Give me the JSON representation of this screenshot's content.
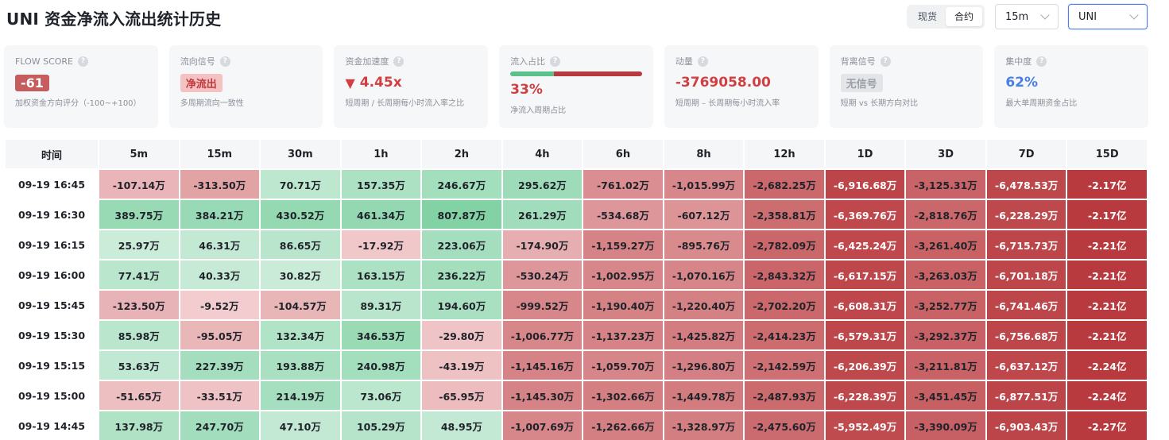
{
  "header": {
    "title": "UNI 资金净流入流出统计历史",
    "market_tabs": [
      {
        "label": "现货",
        "active": false
      },
      {
        "label": "合约",
        "active": true
      }
    ],
    "interval": "15m",
    "coin": "UNI"
  },
  "cards": [
    {
      "label": "FLOW SCORE",
      "value": "-61",
      "style": "score",
      "desc": "加权资金方向评分（-100~+100）"
    },
    {
      "label": "流向信号",
      "value": "净流出",
      "style": "signal",
      "desc": "多周期流向一致性"
    },
    {
      "label": "资金加速度",
      "value": "4.45x",
      "arrow": "▼",
      "style": "red",
      "desc": "短周期 / 长周期每小时流入率之比"
    },
    {
      "label": "流入占比",
      "value": "33%",
      "ratio": 0.33,
      "style": "ratio",
      "desc": "净流入周期占比"
    },
    {
      "label": "动量",
      "value": "-3769058.00",
      "style": "red",
      "desc": "短周期 – 长周期每小时流入率"
    },
    {
      "label": "背离信号",
      "value": "无信号",
      "style": "none",
      "desc": "短期 vs 长期方向对比"
    },
    {
      "label": "集中度",
      "value": "62%",
      "style": "blue",
      "desc": "最大单周期资金占比"
    }
  ],
  "colors": {
    "green_strong": "#7fd1a3",
    "green_light": "#dff3e8",
    "red_light": "#f4d0d2",
    "red_strong": "#b83a3e"
  },
  "table": {
    "columns": [
      "时间",
      "5m",
      "15m",
      "30m",
      "1h",
      "2h",
      "4h",
      "6h",
      "8h",
      "12h",
      "1D",
      "3D",
      "7D",
      "15D"
    ],
    "rows": [
      {
        "time": "09-19 16:45",
        "cells": [
          {
            "t": "-107.14万",
            "v": -107.14
          },
          {
            "t": "-313.50万",
            "v": -313.5
          },
          {
            "t": "70.71万",
            "v": 70.71
          },
          {
            "t": "157.35万",
            "v": 157.35
          },
          {
            "t": "246.67万",
            "v": 246.67
          },
          {
            "t": "295.62万",
            "v": 295.62
          },
          {
            "t": "-761.02万",
            "v": -761.02
          },
          {
            "t": "-1,015.99万",
            "v": -1015.99
          },
          {
            "t": "-2,682.25万",
            "v": -2682.25
          },
          {
            "t": "-6,916.68万",
            "v": -6916.68
          },
          {
            "t": "-3,125.31万",
            "v": -3125.31
          },
          {
            "t": "-6,478.53万",
            "v": -6478.53
          },
          {
            "t": "-2.17亿",
            "v": -21700
          }
        ]
      },
      {
        "time": "09-19 16:30",
        "cells": [
          {
            "t": "389.75万",
            "v": 389.75
          },
          {
            "t": "384.21万",
            "v": 384.21
          },
          {
            "t": "430.52万",
            "v": 430.52
          },
          {
            "t": "461.34万",
            "v": 461.34
          },
          {
            "t": "807.87万",
            "v": 807.87
          },
          {
            "t": "261.29万",
            "v": 261.29
          },
          {
            "t": "-534.68万",
            "v": -534.68
          },
          {
            "t": "-607.12万",
            "v": -607.12
          },
          {
            "t": "-2,358.81万",
            "v": -2358.81
          },
          {
            "t": "-6,369.76万",
            "v": -6369.76
          },
          {
            "t": "-2,818.76万",
            "v": -2818.76
          },
          {
            "t": "-6,228.29万",
            "v": -6228.29
          },
          {
            "t": "-2.17亿",
            "v": -21700
          }
        ]
      },
      {
        "time": "09-19 16:15",
        "cells": [
          {
            "t": "25.97万",
            "v": 25.97
          },
          {
            "t": "46.31万",
            "v": 46.31
          },
          {
            "t": "86.65万",
            "v": 86.65
          },
          {
            "t": "-17.92万",
            "v": -17.92
          },
          {
            "t": "223.06万",
            "v": 223.06
          },
          {
            "t": "-174.90万",
            "v": -174.9
          },
          {
            "t": "-1,159.27万",
            "v": -1159.27
          },
          {
            "t": "-895.76万",
            "v": -895.76
          },
          {
            "t": "-2,782.09万",
            "v": -2782.09
          },
          {
            "t": "-6,425.24万",
            "v": -6425.24
          },
          {
            "t": "-3,261.40万",
            "v": -3261.4
          },
          {
            "t": "-6,715.73万",
            "v": -6715.73
          },
          {
            "t": "-2.21亿",
            "v": -22100
          }
        ]
      },
      {
        "time": "09-19 16:00",
        "cells": [
          {
            "t": "77.41万",
            "v": 77.41
          },
          {
            "t": "40.33万",
            "v": 40.33
          },
          {
            "t": "30.82万",
            "v": 30.82
          },
          {
            "t": "163.15万",
            "v": 163.15
          },
          {
            "t": "236.22万",
            "v": 236.22
          },
          {
            "t": "-530.24万",
            "v": -530.24
          },
          {
            "t": "-1,002.95万",
            "v": -1002.95
          },
          {
            "t": "-1,070.16万",
            "v": -1070.16
          },
          {
            "t": "-2,843.32万",
            "v": -2843.32
          },
          {
            "t": "-6,617.15万",
            "v": -6617.15
          },
          {
            "t": "-3,263.03万",
            "v": -3263.03
          },
          {
            "t": "-6,701.18万",
            "v": -6701.18
          },
          {
            "t": "-2.21亿",
            "v": -22100
          }
        ]
      },
      {
        "time": "09-19 15:45",
        "cells": [
          {
            "t": "-123.50万",
            "v": -123.5
          },
          {
            "t": "-9.52万",
            "v": -9.52
          },
          {
            "t": "-104.57万",
            "v": -104.57
          },
          {
            "t": "89.31万",
            "v": 89.31
          },
          {
            "t": "194.60万",
            "v": 194.6
          },
          {
            "t": "-999.52万",
            "v": -999.52
          },
          {
            "t": "-1,190.40万",
            "v": -1190.4
          },
          {
            "t": "-1,220.40万",
            "v": -1220.4
          },
          {
            "t": "-2,702.20万",
            "v": -2702.2
          },
          {
            "t": "-6,608.31万",
            "v": -6608.31
          },
          {
            "t": "-3,252.77万",
            "v": -3252.77
          },
          {
            "t": "-6,741.46万",
            "v": -6741.46
          },
          {
            "t": "-2.21亿",
            "v": -22100
          }
        ]
      },
      {
        "time": "09-19 15:30",
        "cells": [
          {
            "t": "85.98万",
            "v": 85.98
          },
          {
            "t": "-95.05万",
            "v": -95.05
          },
          {
            "t": "132.34万",
            "v": 132.34
          },
          {
            "t": "346.53万",
            "v": 346.53
          },
          {
            "t": "-29.80万",
            "v": -29.8
          },
          {
            "t": "-1,006.77万",
            "v": -1006.77
          },
          {
            "t": "-1,137.23万",
            "v": -1137.23
          },
          {
            "t": "-1,425.82万",
            "v": -1425.82
          },
          {
            "t": "-2,414.23万",
            "v": -2414.23
          },
          {
            "t": "-6,579.31万",
            "v": -6579.31
          },
          {
            "t": "-3,292.37万",
            "v": -3292.37
          },
          {
            "t": "-6,756.68万",
            "v": -6756.68
          },
          {
            "t": "-2.21亿",
            "v": -22100
          }
        ]
      },
      {
        "time": "09-19 15:15",
        "cells": [
          {
            "t": "53.63万",
            "v": 53.63
          },
          {
            "t": "227.39万",
            "v": 227.39
          },
          {
            "t": "193.88万",
            "v": 193.88
          },
          {
            "t": "240.98万",
            "v": 240.98
          },
          {
            "t": "-43.19万",
            "v": -43.19
          },
          {
            "t": "-1,145.16万",
            "v": -1145.16
          },
          {
            "t": "-1,059.70万",
            "v": -1059.7
          },
          {
            "t": "-1,296.80万",
            "v": -1296.8
          },
          {
            "t": "-2,142.59万",
            "v": -2142.59
          },
          {
            "t": "-6,206.39万",
            "v": -6206.39
          },
          {
            "t": "-3,211.81万",
            "v": -3211.81
          },
          {
            "t": "-6,637.12万",
            "v": -6637.12
          },
          {
            "t": "-2.24亿",
            "v": -22400
          }
        ]
      },
      {
        "time": "09-19 15:00",
        "cells": [
          {
            "t": "-51.65万",
            "v": -51.65
          },
          {
            "t": "-33.51万",
            "v": -33.51
          },
          {
            "t": "214.19万",
            "v": 214.19
          },
          {
            "t": "73.06万",
            "v": 73.06
          },
          {
            "t": "-65.95万",
            "v": -65.95
          },
          {
            "t": "-1,145.30万",
            "v": -1145.3
          },
          {
            "t": "-1,302.66万",
            "v": -1302.66
          },
          {
            "t": "-1,449.78万",
            "v": -1449.78
          },
          {
            "t": "-2,487.93万",
            "v": -2487.93
          },
          {
            "t": "-6,228.39万",
            "v": -6228.39
          },
          {
            "t": "-3,451.45万",
            "v": -3451.45
          },
          {
            "t": "-6,877.51万",
            "v": -6877.51
          },
          {
            "t": "-2.24亿",
            "v": -22400
          }
        ]
      },
      {
        "time": "09-19 14:45",
        "cells": [
          {
            "t": "137.98万",
            "v": 137.98
          },
          {
            "t": "247.70万",
            "v": 247.7
          },
          {
            "t": "47.10万",
            "v": 47.1
          },
          {
            "t": "105.29万",
            "v": 105.29
          },
          {
            "t": "48.95万",
            "v": 48.95
          },
          {
            "t": "-1,007.69万",
            "v": -1007.69
          },
          {
            "t": "-1,262.66万",
            "v": -1262.66
          },
          {
            "t": "-1,328.97万",
            "v": -1328.97
          },
          {
            "t": "-2,475.60万",
            "v": -2475.6
          },
          {
            "t": "-5,952.49万",
            "v": -5952.49
          },
          {
            "t": "-3,390.09万",
            "v": -3390.09
          },
          {
            "t": "-6,903.43万",
            "v": -6903.43
          },
          {
            "t": "-2.27亿",
            "v": -22700
          }
        ]
      }
    ]
  }
}
